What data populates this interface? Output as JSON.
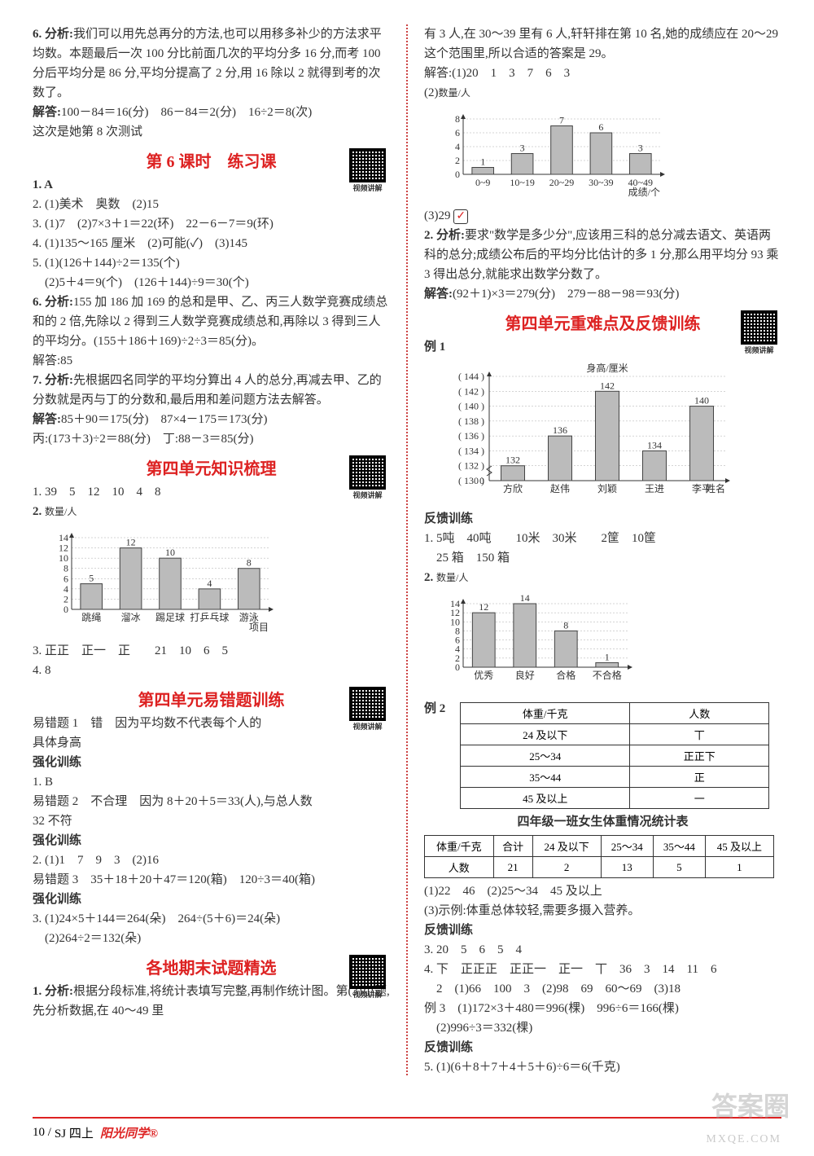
{
  "leftCol": {
    "q6": {
      "label": "6. 分析:",
      "text1": "我们可以用先总再分的方法,也可以用移多补少的方法求平均数。本题最后一次 100 分比前面几次的平均分多 16 分,而考 100 分后平均分是 86 分,平均分提高了 2 分,用 16 除以 2 就得到考的次数了。",
      "solLabel": "解答:",
      "sol": "100－84＝16(分)　86－84＝2(分)　16÷2＝8(次)",
      "sol2": "这次是她第 8 次测试"
    },
    "sec6": {
      "title": "第 6 课时　练习课",
      "qrLabel": "视频讲解",
      "a1": "1. A",
      "a2": "2. (1)美术　奥数　(2)15",
      "a3": "3. (1)7　(2)7×3＋1＝22(环)　22－6－7＝9(环)",
      "a4": "4. (1)135～165 厘米　(2)可能(✓)　(3)145",
      "a5a": "5. (1)(126＋144)÷2＝135(个)",
      "a5b": "　(2)5＋4＝9(个)　(126＋144)÷9＝30(个)",
      "a6Label": "6. 分析:",
      "a6Text": "155 加 186 加 169 的总和是甲、乙、丙三人数学竞赛成绩总和的 2 倍,先除以 2 得到三人数学竞赛成绩总和,再除以 3 得到三人的平均分。(155＋186＋169)÷2÷3＝85(分)。",
      "a6Sol": "解答:85",
      "a7Label": "7. 分析:",
      "a7Text": "先根据四名同学的平均分算出 4 人的总分,再减去甲、乙的分数就是丙与丁的分数和,最后用和差问题方法去解答。",
      "a7Sol1": "解答:85＋90＝175(分)　87×4－175＝173(分)",
      "a7Sol2": "丙:(173＋3)÷2＝88(分)　丁:88－3＝85(分)"
    },
    "unit4rev": {
      "title": "第四单元知识梳理",
      "qrLabel": "视频讲解",
      "a1": "1. 39　5　12　10　4　8",
      "a2Label": "2.",
      "chart": {
        "ylabel": "数量/人",
        "xlabel": "项目",
        "ymax": 14,
        "ystep": 2,
        "cats": [
          "跳绳",
          "溜冰",
          "踢足球",
          "打乒乓球",
          "游泳"
        ],
        "vals": [
          5,
          12,
          10,
          4,
          8
        ],
        "barFill": "#bbb",
        "barStroke": "#444"
      },
      "a3": "3. 正正　正一　正　　21　10　6　5",
      "a4": "4. 8"
    },
    "unit4err": {
      "title": "第四单元易错题训练",
      "qrLabel": "视频讲解",
      "e1a": "易错题 1　错　因为平均数不代表每个人的",
      "e1b": "具体身高",
      "s1": "强化训练",
      "s1a": "1. B",
      "e2a": "易错题 2　不合理　因为 8＋20＋5＝33(人),与总人数",
      "e2b": "32 不符",
      "s2": "强化训练",
      "s2a": "2. (1)1　7　9　3　(2)16",
      "e3": "易错题 3　35＋18＋20＋47＝120(箱)　120÷3＝40(箱)",
      "s3": "强化训练",
      "s3a": "3. (1)24×5＋144＝264(朵)　264÷(5＋6)＝24(朵)",
      "s3b": "　(2)264÷2＝132(朵)"
    },
    "exam": {
      "title": "各地期末试题精选",
      "qrLabel": "视频讲解",
      "a1": "1. 分析:根据分段标准,将统计表填写完整,再制作统计图。第(3)小题,先分析数据,在 40～49 里"
    }
  },
  "rightCol": {
    "cont": {
      "line1": "有 3 人,在 30～39 里有 6 人,轩轩排在第 10 名,她的成绩应在 20～29 这个范围里,所以合适的答案是 29。",
      "sol1": "解答:(1)20　1　3　7　6　3",
      "sol2Label": "(2)",
      "chart": {
        "ylabel": "数量/人",
        "xlabel": "成绩/个",
        "ymax": 8,
        "ystep": 2,
        "cats": [
          "0~9",
          "10~19",
          "20~29",
          "30~39",
          "40~49"
        ],
        "vals": [
          1,
          3,
          7,
          6,
          3
        ],
        "barFill": "#bbb",
        "barStroke": "#444"
      },
      "sol3": "(3)29 ✓"
    },
    "q2": {
      "label": "2. 分析:",
      "text": "要求\"数学是多少分\",应该用三科的总分减去语文、英语两科的总分;成绩公布后的平均分比估计的多 1 分,那么用平均分 93 乘 3 得出总分,就能求出数学分数了。",
      "sol": "解答:(92＋1)×3＝279(分)　279－88－98＝93(分)"
    },
    "unit4diff": {
      "title": "第四单元重难点及反馈训练",
      "qrLabel": "视频讲解",
      "ex1Label": "例 1",
      "chart1": {
        "ylabel": "身高/厘米",
        "xlabel": "姓名",
        "yvals": [
          "( 144 )",
          "( 142 )",
          "( 140 )",
          "( 138 )",
          "( 136 )",
          "( 134 )",
          "( 132 )",
          "( 130 )",
          "0"
        ],
        "cats": [
          "方欣",
          "赵伟",
          "刘颖",
          "王进",
          "李平"
        ],
        "vals": [
          132,
          136,
          142,
          134,
          140
        ],
        "barFill": "#bbb",
        "barStroke": "#444"
      },
      "fb1": "反馈训练",
      "fb1a": "1. 5吨　40吨　　10米　30米　　2筐　10筐",
      "fb1b": "　25 箱　150 箱",
      "a2Label": "2.",
      "chart2": {
        "ylabel": "数量/人",
        "ymax": 14,
        "ystep": 2,
        "cats": [
          "优秀",
          "良好",
          "合格",
          "不合格"
        ],
        "vals": [
          12,
          14,
          8,
          1
        ],
        "barFill": "#bbb",
        "barStroke": "#444"
      },
      "ex2Label": "例 2",
      "table1": {
        "headers": [
          "体重/千克",
          "人数"
        ],
        "rows": [
          [
            "24 及以下",
            "丅"
          ],
          [
            "25～34",
            "正正下"
          ],
          [
            "35～44",
            "正"
          ],
          [
            "45 及以上",
            "一"
          ]
        ]
      },
      "table2title": "四年级一班女生体重情况统计表",
      "table2": {
        "headers": [
          "体重/千克",
          "合计",
          "24 及以下",
          "25～34",
          "35～44",
          "45 及以上"
        ],
        "row": [
          "人数",
          "21",
          "2",
          "13",
          "5",
          "1"
        ]
      },
      "ex2a": "(1)22　46　(2)25～34　45 及以上",
      "ex2b": "(3)示例:体重总体较轻,需要多摄入营养。",
      "fb2": "反馈训练",
      "fb2a": "3. 20　5　6　5　4",
      "fb2b": "4. 下　正正正　正正一　正一　丅　36　3　14　11　6",
      "fb2c": "　2　(1)66　100　3　(2)98　69　60～69　(3)18",
      "ex3a": "例 3　(1)172×3＋480＝996(棵)　996÷6＝166(棵)",
      "ex3b": "　(2)996÷3＝332(棵)",
      "fb3": "反馈训练",
      "fb3a": "5. (1)(6＋8＋7＋4＋5＋6)÷6＝6(千克)"
    }
  },
  "footer": {
    "page": "10 /",
    "code": "SJ 四上",
    "brand": "阳光同学®"
  },
  "watermark": {
    "big": "答案圈",
    "url": "MXQE.COM"
  }
}
